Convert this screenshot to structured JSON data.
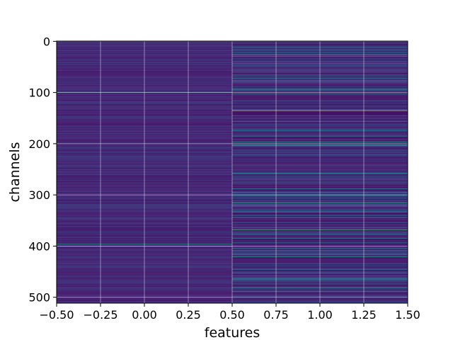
{
  "chart_data": {
    "type": "heatmap",
    "title": "",
    "xlabel": "features",
    "ylabel": "channels",
    "x_columns": [
      0,
      1
    ],
    "n_channels": 512,
    "xlim": [
      -0.5,
      1.5
    ],
    "ylim": [
      511.5,
      -0.5
    ],
    "y_inverted": true,
    "colormap": "viridis",
    "grid": true,
    "x_ticks": [
      -0.5,
      -0.25,
      0.0,
      0.25,
      0.5,
      0.75,
      1.0,
      1.25,
      1.5
    ],
    "x_tick_labels": [
      "−0.50",
      "−0.25",
      "0.00",
      "0.25",
      "0.50",
      "0.75",
      "1.00",
      "1.25",
      "1.50"
    ],
    "y_ticks": [
      0,
      100,
      200,
      300,
      400,
      500
    ],
    "y_tick_labels": [
      "0",
      "100",
      "200",
      "300",
      "400",
      "500"
    ],
    "colors": {
      "viridis_low": "#440154",
      "column0_base": "#46307e",
      "column1_base": "#3b2a76",
      "highlight_teal": "#21a685",
      "highlight_yellow": "#fde725",
      "grid": "#ffffff"
    },
    "highlights": [
      {
        "column": 0,
        "channel": 100,
        "value": 0.35
      },
      {
        "column": 0,
        "channel": 396,
        "value": 0.55
      },
      {
        "column": 1,
        "channel": 26,
        "value": 0.6
      },
      {
        "column": 1,
        "channel": 29,
        "value": 0.55
      },
      {
        "column": 1,
        "channel": 66,
        "value": 0.5
      },
      {
        "column": 1,
        "channel": 76,
        "value": 0.4
      },
      {
        "column": 1,
        "channel": 102,
        "value": 0.45
      },
      {
        "column": 1,
        "channel": 135,
        "value": 0.95
      },
      {
        "column": 1,
        "channel": 185,
        "value": 0.45
      },
      {
        "column": 1,
        "channel": 197,
        "value": 0.5
      },
      {
        "column": 1,
        "channel": 203,
        "value": 0.55
      },
      {
        "column": 1,
        "channel": 258,
        "value": 0.45
      },
      {
        "column": 1,
        "channel": 275,
        "value": 0.5
      },
      {
        "column": 1,
        "channel": 288,
        "value": 0.45
      },
      {
        "column": 1,
        "channel": 302,
        "value": 0.4
      },
      {
        "column": 1,
        "channel": 316,
        "value": 0.6
      },
      {
        "column": 1,
        "channel": 320,
        "value": 0.55
      },
      {
        "column": 1,
        "channel": 333,
        "value": 0.45
      },
      {
        "column": 1,
        "channel": 368,
        "value": 0.7
      },
      {
        "column": 1,
        "channel": 421,
        "value": 0.55
      },
      {
        "column": 1,
        "channel": 466,
        "value": 0.5
      },
      {
        "column": 1,
        "channel": 480,
        "value": 0.45
      }
    ]
  }
}
